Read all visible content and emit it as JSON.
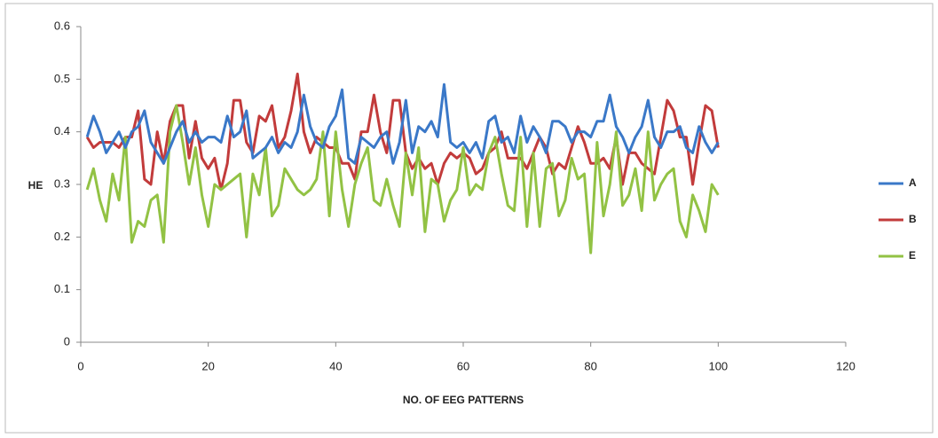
{
  "chart_data": {
    "type": "line",
    "xlabel": "NO. OF EEG PATTERNS",
    "ylabel": "HE",
    "x": [
      1,
      2,
      3,
      4,
      5,
      6,
      7,
      8,
      9,
      10,
      11,
      12,
      13,
      14,
      15,
      16,
      17,
      18,
      19,
      20,
      21,
      22,
      23,
      24,
      25,
      26,
      27,
      28,
      29,
      30,
      31,
      32,
      33,
      34,
      35,
      36,
      37,
      38,
      39,
      40,
      41,
      42,
      43,
      44,
      45,
      46,
      47,
      48,
      49,
      50,
      51,
      52,
      53,
      54,
      55,
      56,
      57,
      58,
      59,
      60,
      61,
      62,
      63,
      64,
      65,
      66,
      67,
      68,
      69,
      70,
      71,
      72,
      73,
      74,
      75,
      76,
      77,
      78,
      79,
      80,
      81,
      82,
      83,
      84,
      85,
      86,
      87,
      88,
      89,
      90,
      91,
      92,
      93,
      94,
      95,
      96,
      97,
      98,
      99,
      100
    ],
    "series": [
      {
        "name": "A",
        "color": "#3a78c8",
        "values": [
          0.39,
          0.43,
          0.4,
          0.36,
          0.38,
          0.4,
          0.37,
          0.4,
          0.41,
          0.44,
          0.38,
          0.36,
          0.34,
          0.37,
          0.4,
          0.42,
          0.38,
          0.4,
          0.38,
          0.39,
          0.39,
          0.38,
          0.43,
          0.39,
          0.4,
          0.44,
          0.35,
          0.36,
          0.37,
          0.39,
          0.36,
          0.38,
          0.37,
          0.4,
          0.47,
          0.41,
          0.38,
          0.37,
          0.41,
          0.43,
          0.48,
          0.35,
          0.34,
          0.39,
          0.38,
          0.37,
          0.39,
          0.4,
          0.34,
          0.38,
          0.46,
          0.36,
          0.41,
          0.4,
          0.42,
          0.39,
          0.49,
          0.38,
          0.37,
          0.38,
          0.36,
          0.38,
          0.35,
          0.42,
          0.43,
          0.38,
          0.39,
          0.36,
          0.43,
          0.38,
          0.41,
          0.39,
          0.36,
          0.42,
          0.42,
          0.41,
          0.38,
          0.4,
          0.4,
          0.39,
          0.42,
          0.42,
          0.47,
          0.41,
          0.39,
          0.36,
          0.39,
          0.41,
          0.46,
          0.39,
          0.37,
          0.4,
          0.4,
          0.41,
          0.37,
          0.36,
          0.41,
          0.38,
          0.36,
          0.38
        ]
      },
      {
        "name": "B",
        "color": "#c23b3b",
        "values": [
          0.39,
          0.37,
          0.38,
          0.38,
          0.38,
          0.37,
          0.39,
          0.39,
          0.44,
          0.31,
          0.3,
          0.4,
          0.34,
          0.42,
          0.45,
          0.45,
          0.35,
          0.42,
          0.35,
          0.33,
          0.35,
          0.29,
          0.34,
          0.46,
          0.46,
          0.38,
          0.36,
          0.43,
          0.42,
          0.45,
          0.37,
          0.39,
          0.44,
          0.51,
          0.4,
          0.36,
          0.39,
          0.38,
          0.37,
          0.37,
          0.34,
          0.34,
          0.31,
          0.4,
          0.4,
          0.47,
          0.4,
          0.36,
          0.46,
          0.46,
          0.36,
          0.33,
          0.35,
          0.33,
          0.34,
          0.3,
          0.34,
          0.36,
          0.35,
          0.36,
          0.35,
          0.32,
          0.33,
          0.36,
          0.37,
          0.4,
          0.35,
          0.35,
          0.35,
          0.33,
          0.36,
          0.39,
          0.37,
          0.32,
          0.34,
          0.33,
          0.37,
          0.41,
          0.38,
          0.34,
          0.34,
          0.35,
          0.33,
          0.39,
          0.3,
          0.36,
          0.36,
          0.34,
          0.33,
          0.32,
          0.39,
          0.46,
          0.44,
          0.39,
          0.39,
          0.3,
          0.38,
          0.45,
          0.44,
          0.37
        ]
      },
      {
        "name": "E",
        "color": "#92c244",
        "values": [
          0.29,
          0.33,
          0.27,
          0.23,
          0.32,
          0.27,
          0.39,
          0.19,
          0.23,
          0.22,
          0.27,
          0.28,
          0.19,
          0.4,
          0.45,
          0.38,
          0.3,
          0.37,
          0.28,
          0.22,
          0.3,
          0.29,
          0.3,
          0.31,
          0.32,
          0.2,
          0.32,
          0.28,
          0.37,
          0.24,
          0.26,
          0.33,
          0.31,
          0.29,
          0.28,
          0.29,
          0.31,
          0.4,
          0.24,
          0.4,
          0.29,
          0.22,
          0.3,
          0.34,
          0.37,
          0.27,
          0.26,
          0.31,
          0.26,
          0.22,
          0.36,
          0.28,
          0.37,
          0.21,
          0.31,
          0.3,
          0.23,
          0.27,
          0.29,
          0.37,
          0.28,
          0.3,
          0.29,
          0.36,
          0.39,
          0.32,
          0.26,
          0.25,
          0.39,
          0.22,
          0.36,
          0.22,
          0.33,
          0.34,
          0.24,
          0.27,
          0.35,
          0.31,
          0.32,
          0.17,
          0.38,
          0.24,
          0.3,
          0.4,
          0.26,
          0.28,
          0.33,
          0.25,
          0.4,
          0.27,
          0.3,
          0.32,
          0.33,
          0.23,
          0.2,
          0.28,
          0.25,
          0.21,
          0.3,
          0.28
        ]
      }
    ],
    "xlim": [
      0,
      120
    ],
    "xticks": [
      0,
      20,
      40,
      60,
      80,
      100,
      120
    ],
    "ylim": [
      0,
      0.6
    ],
    "yticks": [
      0,
      0.1,
      0.2,
      0.3,
      0.4,
      0.5,
      0.6
    ],
    "grid": false,
    "legend": "right"
  }
}
